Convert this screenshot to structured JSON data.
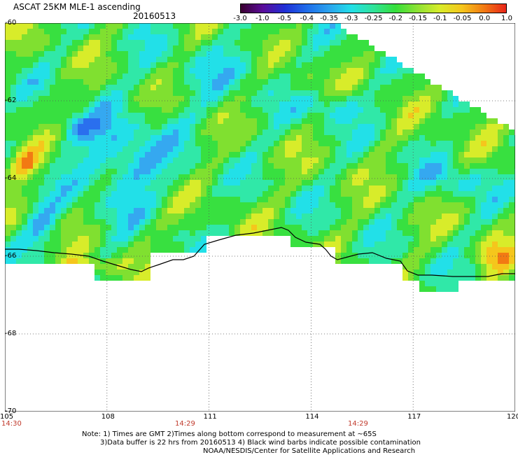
{
  "header": {
    "title": "ASCAT 25KM MLE-1 ascending",
    "date": "20160513"
  },
  "colorbar": {
    "labels": [
      "-3.0",
      "-1.0",
      "-0.5",
      "-0.4",
      "-0.35",
      "-0.3",
      "-0.25",
      "-0.2",
      "-0.15",
      "-0.1",
      "-0.05",
      "0.0",
      "1.0"
    ],
    "colors": [
      "#3a0030",
      "#5a0c9a",
      "#1f2fd6",
      "#1f6dea",
      "#2aa3ee",
      "#22dfe8",
      "#2fe39a",
      "#35df3a",
      "#8ee234",
      "#d8ec2a",
      "#f5c61c",
      "#f27a13",
      "#e8241a"
    ]
  },
  "axes": {
    "lon_ticks": [
      "105",
      "108",
      "111",
      "114",
      "117",
      "120"
    ],
    "lat_ticks": [
      "-60",
      "-62",
      "-64",
      "-66",
      "-68",
      "-70"
    ],
    "lon_range": [
      105,
      120
    ],
    "lat_range": [
      -60,
      -70
    ]
  },
  "times": [
    "14:30",
    "14:29",
    "14:29"
  ],
  "notes": [
    "Note: 1) Times are GMT 2)Times along bottom correspond to measurement at ~65S",
    "3)Data buffer is 22 hrs from 20160513 4) Black wind barbs indicate possible contamination",
    "NOAA/NESDIS/Center for Satellite Applications and Research"
  ]
}
